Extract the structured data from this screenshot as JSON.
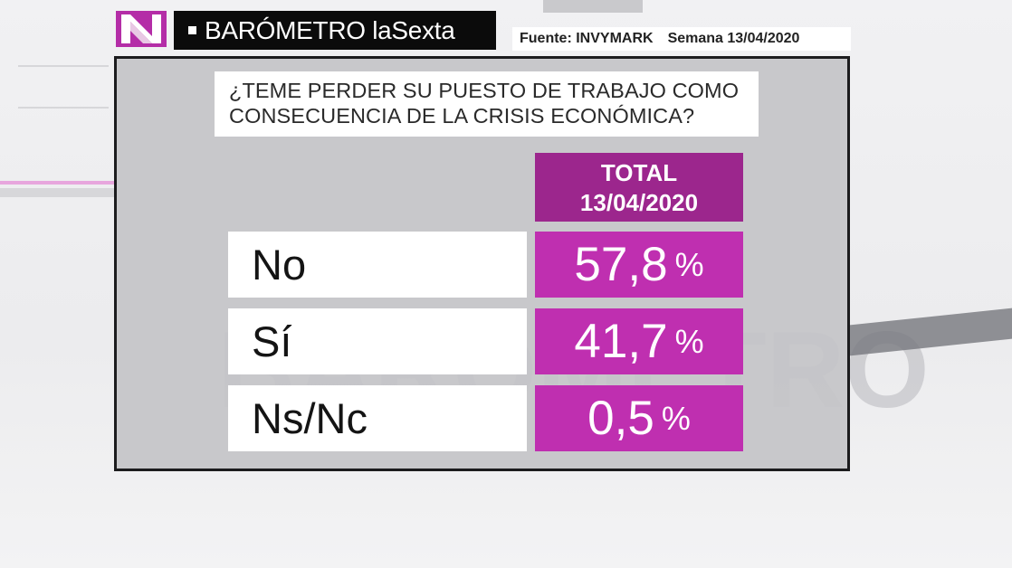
{
  "header": {
    "logo_letter": "N",
    "title": "BARÓMETRO laSexta",
    "source": "Fuente: INVYMARK",
    "week": "Semana 13/04/2020"
  },
  "colors": {
    "logo": "#b42da7",
    "column_header": "#9c268d",
    "value_cell": "#bf2fb0",
    "panel": "#c4c4c8"
  },
  "chart_data": {
    "type": "table",
    "title": "¿TEME PERDER SU PUESTO DE TRABAJO COMO CONSECUENCIA DE LA CRISIS ECONÓMICA?",
    "title_lines": [
      "¿TEME PERDER SU PUESTO DE TRABAJO COMO",
      "CONSECUENCIA DE LA CRISIS ECONÓMICA?"
    ],
    "column_header_lines": [
      "TOTAL",
      "13/04/2020"
    ],
    "categories": [
      "No",
      "Sí",
      "Ns/Nc"
    ],
    "values": [
      57.8,
      41.7,
      0.5
    ],
    "value_labels": [
      "57,8",
      "41,7",
      "0,5"
    ],
    "unit": "%"
  }
}
